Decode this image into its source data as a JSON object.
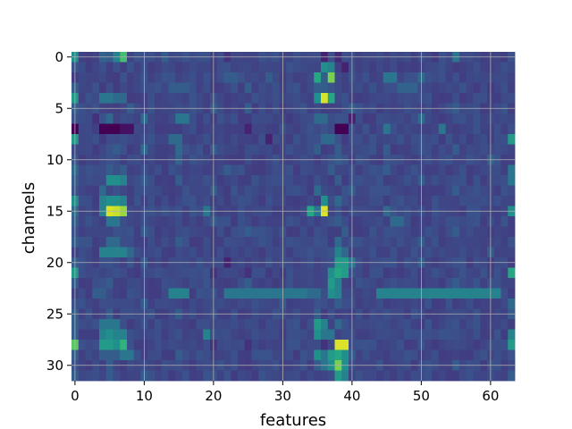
{
  "chart_data": {
    "type": "heatmap",
    "title": "",
    "xlabel": "features",
    "ylabel": "channels",
    "n_cols": 64,
    "n_rows": 32,
    "xlim": [
      -0.5,
      63.5
    ],
    "ylim": [
      31.5,
      -0.5
    ],
    "x_ticks": [
      0,
      10,
      20,
      30,
      40,
      50,
      60
    ],
    "y_ticks": [
      0,
      5,
      10,
      15,
      20,
      25,
      30
    ],
    "grid": true,
    "colormap": "viridis",
    "value_range": [
      0,
      1
    ],
    "background_value": 0.22,
    "cells": [
      [
        0,
        0,
        0.5
      ],
      [
        0,
        4,
        0.32
      ],
      [
        0,
        5,
        0.3
      ],
      [
        0,
        6,
        0.45
      ],
      [
        0,
        7,
        0.7
      ],
      [
        0,
        13,
        0.3
      ],
      [
        0,
        22,
        0.15
      ],
      [
        0,
        36,
        0.1
      ],
      [
        0,
        38,
        0.12
      ],
      [
        0,
        55,
        0.4
      ],
      [
        1,
        36,
        0.5
      ],
      [
        1,
        37,
        0.45
      ],
      [
        1,
        39,
        0.1
      ],
      [
        2,
        22,
        0.3
      ],
      [
        2,
        23,
        0.3
      ],
      [
        2,
        28,
        0.3
      ],
      [
        2,
        35,
        0.6
      ],
      [
        2,
        36,
        0.3
      ],
      [
        2,
        37,
        0.8
      ],
      [
        2,
        45,
        0.4
      ],
      [
        2,
        46,
        0.4
      ],
      [
        2,
        50,
        0.35
      ],
      [
        3,
        0,
        0.3
      ],
      [
        3,
        14,
        0.3
      ],
      [
        3,
        15,
        0.3
      ],
      [
        3,
        16,
        0.3
      ],
      [
        3,
        25,
        0.3
      ],
      [
        3,
        35,
        0.3
      ],
      [
        3,
        36,
        0.3
      ],
      [
        3,
        47,
        0.32
      ],
      [
        3,
        48,
        0.32
      ],
      [
        3,
        49,
        0.32
      ],
      [
        4,
        0,
        0.55
      ],
      [
        4,
        4,
        0.4
      ],
      [
        4,
        5,
        0.4
      ],
      [
        4,
        6,
        0.35
      ],
      [
        4,
        7,
        0.35
      ],
      [
        4,
        35,
        0.5
      ],
      [
        4,
        36,
        0.95
      ],
      [
        4,
        37,
        0.6
      ],
      [
        5,
        0,
        0.3
      ],
      [
        5,
        8,
        0.3
      ],
      [
        5,
        20,
        0.3
      ],
      [
        5,
        25,
        0.3
      ],
      [
        5,
        40,
        0.3
      ],
      [
        5,
        55,
        0.3
      ],
      [
        6,
        0,
        0.25
      ],
      [
        6,
        3,
        0.15
      ],
      [
        6,
        5,
        0.35
      ],
      [
        6,
        10,
        0.35
      ],
      [
        6,
        15,
        0.4
      ],
      [
        6,
        16,
        0.4
      ],
      [
        6,
        35,
        0.35
      ],
      [
        6,
        36,
        0.35
      ],
      [
        6,
        40,
        0.1
      ],
      [
        6,
        50,
        0.35
      ],
      [
        7,
        0,
        0.0
      ],
      [
        7,
        4,
        0.0
      ],
      [
        7,
        5,
        0.0
      ],
      [
        7,
        6,
        0.0
      ],
      [
        7,
        7,
        0.05
      ],
      [
        7,
        8,
        0.05
      ],
      [
        7,
        25,
        0.1
      ],
      [
        7,
        38,
        0.0
      ],
      [
        7,
        39,
        0.0
      ],
      [
        7,
        45,
        0.4
      ],
      [
        7,
        53,
        0.4
      ],
      [
        8,
        0,
        0.55
      ],
      [
        8,
        14,
        0.35
      ],
      [
        8,
        15,
        0.35
      ],
      [
        8,
        28,
        0.1
      ],
      [
        8,
        36,
        0.35
      ],
      [
        8,
        37,
        0.35
      ],
      [
        8,
        63,
        0.55
      ],
      [
        9,
        6,
        0.3
      ],
      [
        9,
        10,
        0.35
      ],
      [
        9,
        15,
        0.35
      ],
      [
        9,
        20,
        0.3
      ],
      [
        9,
        35,
        0.3
      ],
      [
        9,
        38,
        0.3
      ],
      [
        9,
        45,
        0.3
      ],
      [
        9,
        55,
        0.3
      ],
      [
        10,
        15,
        0.32
      ],
      [
        10,
        38,
        0.3
      ],
      [
        10,
        60,
        0.32
      ],
      [
        11,
        0,
        0.35
      ],
      [
        11,
        5,
        0.3
      ],
      [
        11,
        7,
        0.3
      ],
      [
        11,
        22,
        0.3
      ],
      [
        11,
        37,
        0.3
      ],
      [
        11,
        45,
        0.3
      ],
      [
        11,
        63,
        0.4
      ],
      [
        12,
        0,
        0.3
      ],
      [
        12,
        5,
        0.5
      ],
      [
        12,
        6,
        0.5
      ],
      [
        12,
        7,
        0.45
      ],
      [
        12,
        10,
        0.3
      ],
      [
        12,
        15,
        0.3
      ],
      [
        12,
        38,
        0.3
      ],
      [
        12,
        50,
        0.3
      ],
      [
        12,
        63,
        0.4
      ],
      [
        13,
        4,
        0.35
      ],
      [
        13,
        20,
        0.3
      ],
      [
        13,
        35,
        0.35
      ],
      [
        13,
        40,
        0.3
      ],
      [
        13,
        55,
        0.3
      ],
      [
        14,
        0,
        0.5
      ],
      [
        14,
        4,
        0.45
      ],
      [
        14,
        5,
        0.5
      ],
      [
        14,
        6,
        0.5
      ],
      [
        14,
        7,
        0.45
      ],
      [
        14,
        36,
        0.5
      ],
      [
        14,
        38,
        0.35
      ],
      [
        15,
        0,
        0.35
      ],
      [
        15,
        4,
        0.45
      ],
      [
        15,
        5,
        0.95
      ],
      [
        15,
        6,
        0.92
      ],
      [
        15,
        7,
        0.85
      ],
      [
        15,
        19,
        0.4
      ],
      [
        15,
        34,
        0.6
      ],
      [
        15,
        35,
        0.4
      ],
      [
        15,
        36,
        0.95
      ],
      [
        15,
        45,
        0.35
      ],
      [
        15,
        63,
        0.5
      ],
      [
        16,
        0,
        0.3
      ],
      [
        16,
        5,
        0.4
      ],
      [
        16,
        6,
        0.4
      ],
      [
        16,
        20,
        0.3
      ],
      [
        16,
        38,
        0.3
      ],
      [
        16,
        46,
        0.35
      ],
      [
        16,
        47,
        0.35
      ],
      [
        17,
        0,
        0.25
      ],
      [
        17,
        10,
        0.3
      ],
      [
        17,
        25,
        0.3
      ],
      [
        17,
        39,
        0.3
      ],
      [
        17,
        55,
        0.3
      ],
      [
        18,
        0,
        0.3
      ],
      [
        18,
        5,
        0.35
      ],
      [
        18,
        6,
        0.35
      ],
      [
        18,
        15,
        0.3
      ],
      [
        18,
        38,
        0.35
      ],
      [
        18,
        50,
        0.3
      ],
      [
        19,
        4,
        0.45
      ],
      [
        19,
        5,
        0.45
      ],
      [
        19,
        6,
        0.45
      ],
      [
        19,
        7,
        0.45
      ],
      [
        19,
        8,
        0.35
      ],
      [
        19,
        38,
        0.45
      ],
      [
        19,
        39,
        0.35
      ],
      [
        19,
        60,
        0.3
      ],
      [
        20,
        0,
        0.3
      ],
      [
        20,
        10,
        0.3
      ],
      [
        20,
        22,
        0.1
      ],
      [
        20,
        38,
        0.55
      ],
      [
        20,
        39,
        0.55
      ],
      [
        20,
        40,
        0.4
      ],
      [
        20,
        50,
        0.3
      ],
      [
        21,
        0,
        0.55
      ],
      [
        21,
        20,
        0.15
      ],
      [
        21,
        25,
        0.15
      ],
      [
        21,
        37,
        0.5
      ],
      [
        21,
        38,
        0.6
      ],
      [
        21,
        39,
        0.55
      ],
      [
        21,
        63,
        0.6
      ],
      [
        22,
        0,
        0.3
      ],
      [
        22,
        5,
        0.3
      ],
      [
        22,
        25,
        0.3
      ],
      [
        22,
        37,
        0.55
      ],
      [
        22,
        38,
        0.45
      ],
      [
        22,
        55,
        0.3
      ],
      [
        23,
        0,
        0.2
      ],
      [
        23,
        3,
        0.3
      ],
      [
        23,
        4,
        0.3
      ],
      [
        23,
        14,
        0.45
      ],
      [
        23,
        15,
        0.45
      ],
      [
        23,
        16,
        0.45
      ],
      [
        23,
        22,
        0.4
      ],
      [
        23,
        23,
        0.4
      ],
      [
        23,
        24,
        0.4
      ],
      [
        23,
        25,
        0.4
      ],
      [
        23,
        26,
        0.4
      ],
      [
        23,
        27,
        0.4
      ],
      [
        23,
        28,
        0.4
      ],
      [
        23,
        29,
        0.4
      ],
      [
        23,
        30,
        0.4
      ],
      [
        23,
        31,
        0.4
      ],
      [
        23,
        32,
        0.4
      ],
      [
        23,
        33,
        0.4
      ],
      [
        23,
        34,
        0.35
      ],
      [
        23,
        35,
        0.35
      ],
      [
        23,
        37,
        0.5
      ],
      [
        23,
        38,
        0.45
      ],
      [
        23,
        44,
        0.45
      ],
      [
        23,
        45,
        0.45
      ],
      [
        23,
        46,
        0.45
      ],
      [
        23,
        47,
        0.45
      ],
      [
        23,
        48,
        0.45
      ],
      [
        23,
        49,
        0.45
      ],
      [
        23,
        50,
        0.45
      ],
      [
        23,
        51,
        0.45
      ],
      [
        23,
        52,
        0.45
      ],
      [
        23,
        53,
        0.45
      ],
      [
        23,
        54,
        0.45
      ],
      [
        23,
        55,
        0.45
      ],
      [
        23,
        56,
        0.45
      ],
      [
        23,
        57,
        0.45
      ],
      [
        23,
        58,
        0.45
      ],
      [
        23,
        59,
        0.45
      ],
      [
        23,
        60,
        0.45
      ],
      [
        23,
        61,
        0.45
      ],
      [
        24,
        0,
        0.25
      ],
      [
        24,
        10,
        0.3
      ],
      [
        24,
        30,
        0.3
      ],
      [
        24,
        38,
        0.3
      ],
      [
        24,
        63,
        0.35
      ],
      [
        25,
        0,
        0.3
      ],
      [
        25,
        5,
        0.3
      ],
      [
        25,
        15,
        0.3
      ],
      [
        25,
        35,
        0.3
      ],
      [
        25,
        63,
        0.3
      ],
      [
        26,
        0,
        0.3
      ],
      [
        26,
        4,
        0.4
      ],
      [
        26,
        5,
        0.4
      ],
      [
        26,
        6,
        0.4
      ],
      [
        26,
        35,
        0.55
      ],
      [
        26,
        36,
        0.45
      ],
      [
        26,
        38,
        0.35
      ],
      [
        27,
        0,
        0.3
      ],
      [
        27,
        4,
        0.45
      ],
      [
        27,
        5,
        0.5
      ],
      [
        27,
        6,
        0.45
      ],
      [
        27,
        7,
        0.45
      ],
      [
        27,
        19,
        0.45
      ],
      [
        27,
        35,
        0.5
      ],
      [
        27,
        36,
        0.4
      ],
      [
        27,
        37,
        0.4
      ],
      [
        27,
        63,
        0.45
      ],
      [
        28,
        0,
        0.75
      ],
      [
        28,
        4,
        0.55
      ],
      [
        28,
        5,
        0.55
      ],
      [
        28,
        6,
        0.5
      ],
      [
        28,
        7,
        0.65
      ],
      [
        28,
        20,
        0.15
      ],
      [
        28,
        25,
        0.15
      ],
      [
        28,
        36,
        0.15
      ],
      [
        28,
        38,
        0.95
      ],
      [
        28,
        39,
        0.95
      ],
      [
        28,
        63,
        0.55
      ],
      [
        29,
        0,
        0.3
      ],
      [
        29,
        4,
        0.3
      ],
      [
        29,
        5,
        0.3
      ],
      [
        29,
        6,
        0.3
      ],
      [
        29,
        7,
        0.4
      ],
      [
        29,
        8,
        0.4
      ],
      [
        29,
        15,
        0.3
      ],
      [
        29,
        35,
        0.5
      ],
      [
        29,
        36,
        0.4
      ],
      [
        29,
        37,
        0.55
      ],
      [
        29,
        38,
        0.6
      ],
      [
        29,
        39,
        0.5
      ],
      [
        29,
        40,
        0.3
      ],
      [
        30,
        0,
        0.25
      ],
      [
        30,
        5,
        0.3
      ],
      [
        30,
        35,
        0.3
      ],
      [
        30,
        36,
        0.4
      ],
      [
        30,
        37,
        0.5
      ],
      [
        30,
        38,
        0.8
      ],
      [
        30,
        39,
        0.5
      ],
      [
        30,
        55,
        0.3
      ],
      [
        31,
        0,
        0.3
      ],
      [
        31,
        5,
        0.3
      ],
      [
        31,
        10,
        0.3
      ],
      [
        31,
        38,
        0.55
      ],
      [
        31,
        39,
        0.45
      ],
      [
        31,
        63,
        0.3
      ]
    ]
  }
}
